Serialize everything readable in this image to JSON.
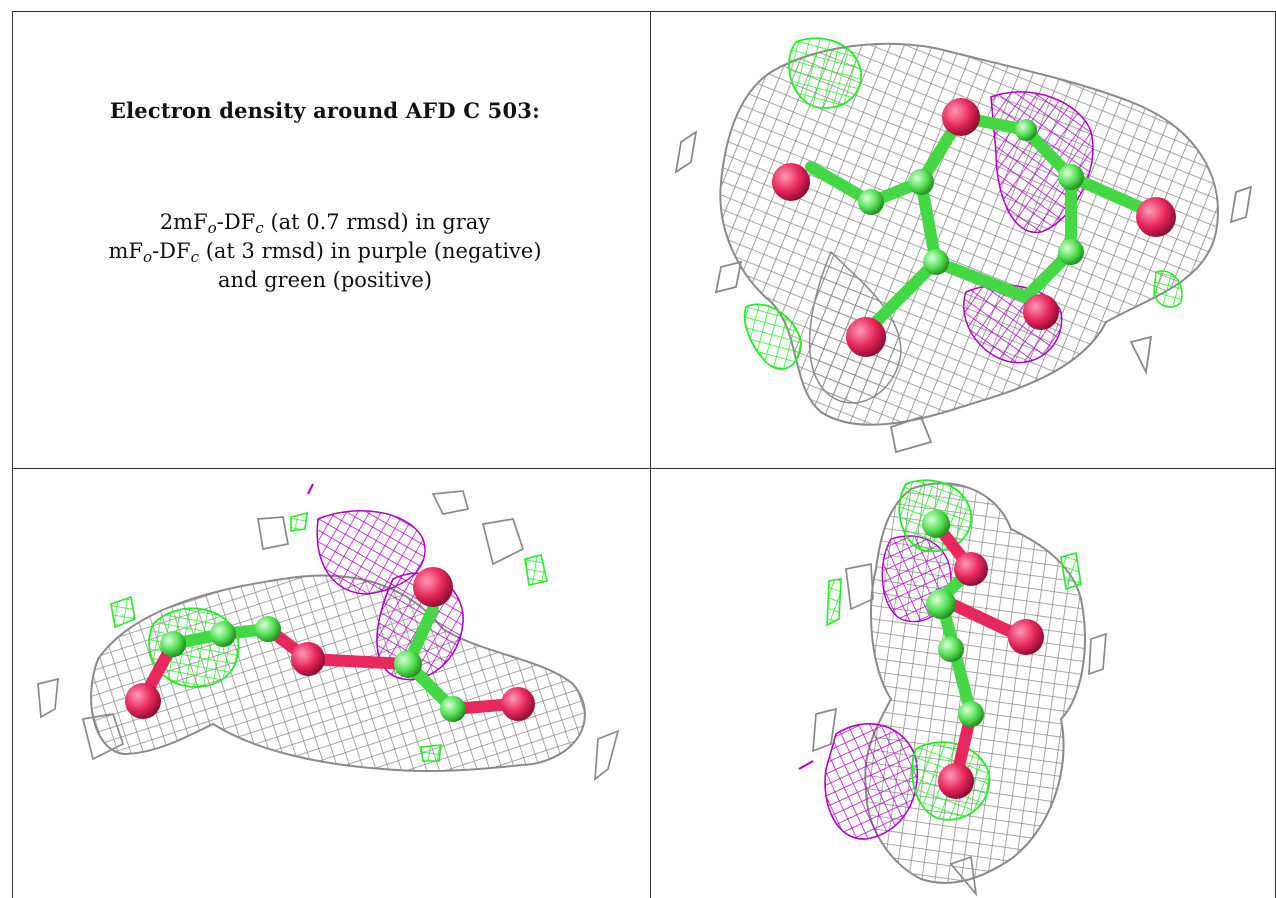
{
  "caption": {
    "title": "Electron density around AFD C 503:",
    "line1_prefix": "2mF",
    "line1_sub1": "o",
    "line1_mid": "-DF",
    "line1_sub2": "c",
    "line1_suffix": " (at 0.7 rmsd) in gray",
    "line2_prefix": "mF",
    "line2_sub1": "o",
    "line2_mid": "-DF",
    "line2_sub2": "c",
    "line2_suffix": " (at 3 rmsd) in purple (negative)",
    "line3": "and green (positive)"
  },
  "colors": {
    "mesh_2fofc": "#8a8a8a",
    "mesh_negative": "#b000c8",
    "mesh_positive": "#22ee22",
    "carbon": "#66ee66",
    "oxygen": "#e8285c",
    "border": "#333333"
  },
  "panels": [
    {
      "name": "view-top-right"
    },
    {
      "name": "view-bottom-left"
    },
    {
      "name": "view-bottom-right"
    }
  ]
}
